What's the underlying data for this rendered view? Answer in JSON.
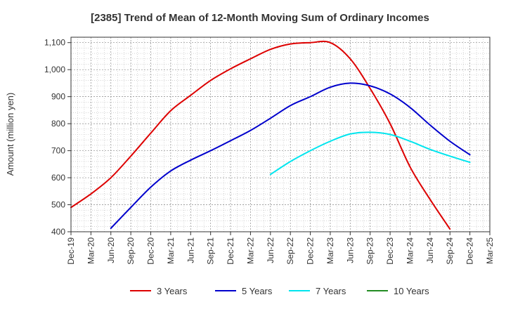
{
  "chart_data": {
    "type": "line",
    "title": "[2385]  Trend of Mean of 12-Month Moving Sum of Ordinary Incomes",
    "xlabel": "",
    "ylabel": "Amount (million yen)",
    "ylim": [
      400,
      1120
    ],
    "yticks": [
      400,
      500,
      600,
      700,
      800,
      900,
      1000,
      1100
    ],
    "ytick_labels": [
      "400",
      "500",
      "600",
      "700",
      "800",
      "900",
      "1,000",
      "1,100"
    ],
    "categories": [
      "Dec-19",
      "Mar-20",
      "Jun-20",
      "Sep-20",
      "Dec-20",
      "Mar-21",
      "Jun-21",
      "Sep-21",
      "Dec-21",
      "Mar-22",
      "Jun-22",
      "Sep-22",
      "Dec-22",
      "Mar-23",
      "Jun-23",
      "Sep-23",
      "Dec-23",
      "Mar-24",
      "Jun-24",
      "Sep-24",
      "Dec-24",
      "Mar-25"
    ],
    "grid": true,
    "legend_position": "bottom",
    "series": [
      {
        "name": "3 Years",
        "color": "#dd0000",
        "values": [
          490,
          540,
          600,
          680,
          765,
          848,
          905,
          960,
          1003,
          1040,
          1075,
          1095,
          1100,
          1100,
          1040,
          930,
          800,
          640,
          520,
          410,
          null,
          null
        ]
      },
      {
        "name": "5 Years",
        "color": "#0000cc",
        "values": [
          null,
          null,
          413,
          490,
          565,
          625,
          665,
          700,
          737,
          775,
          820,
          867,
          900,
          935,
          950,
          940,
          910,
          860,
          795,
          735,
          685,
          null
        ]
      },
      {
        "name": "7 Years",
        "color": "#00e5ee",
        "values": [
          null,
          null,
          null,
          null,
          null,
          null,
          null,
          null,
          null,
          null,
          612,
          660,
          700,
          735,
          762,
          768,
          760,
          735,
          705,
          680,
          657,
          null
        ]
      },
      {
        "name": "10 Years",
        "color": "#228b22",
        "values": [
          null,
          null,
          null,
          null,
          null,
          null,
          null,
          null,
          null,
          null,
          null,
          null,
          null,
          null,
          null,
          null,
          null,
          null,
          null,
          null,
          null,
          null
        ]
      }
    ]
  }
}
